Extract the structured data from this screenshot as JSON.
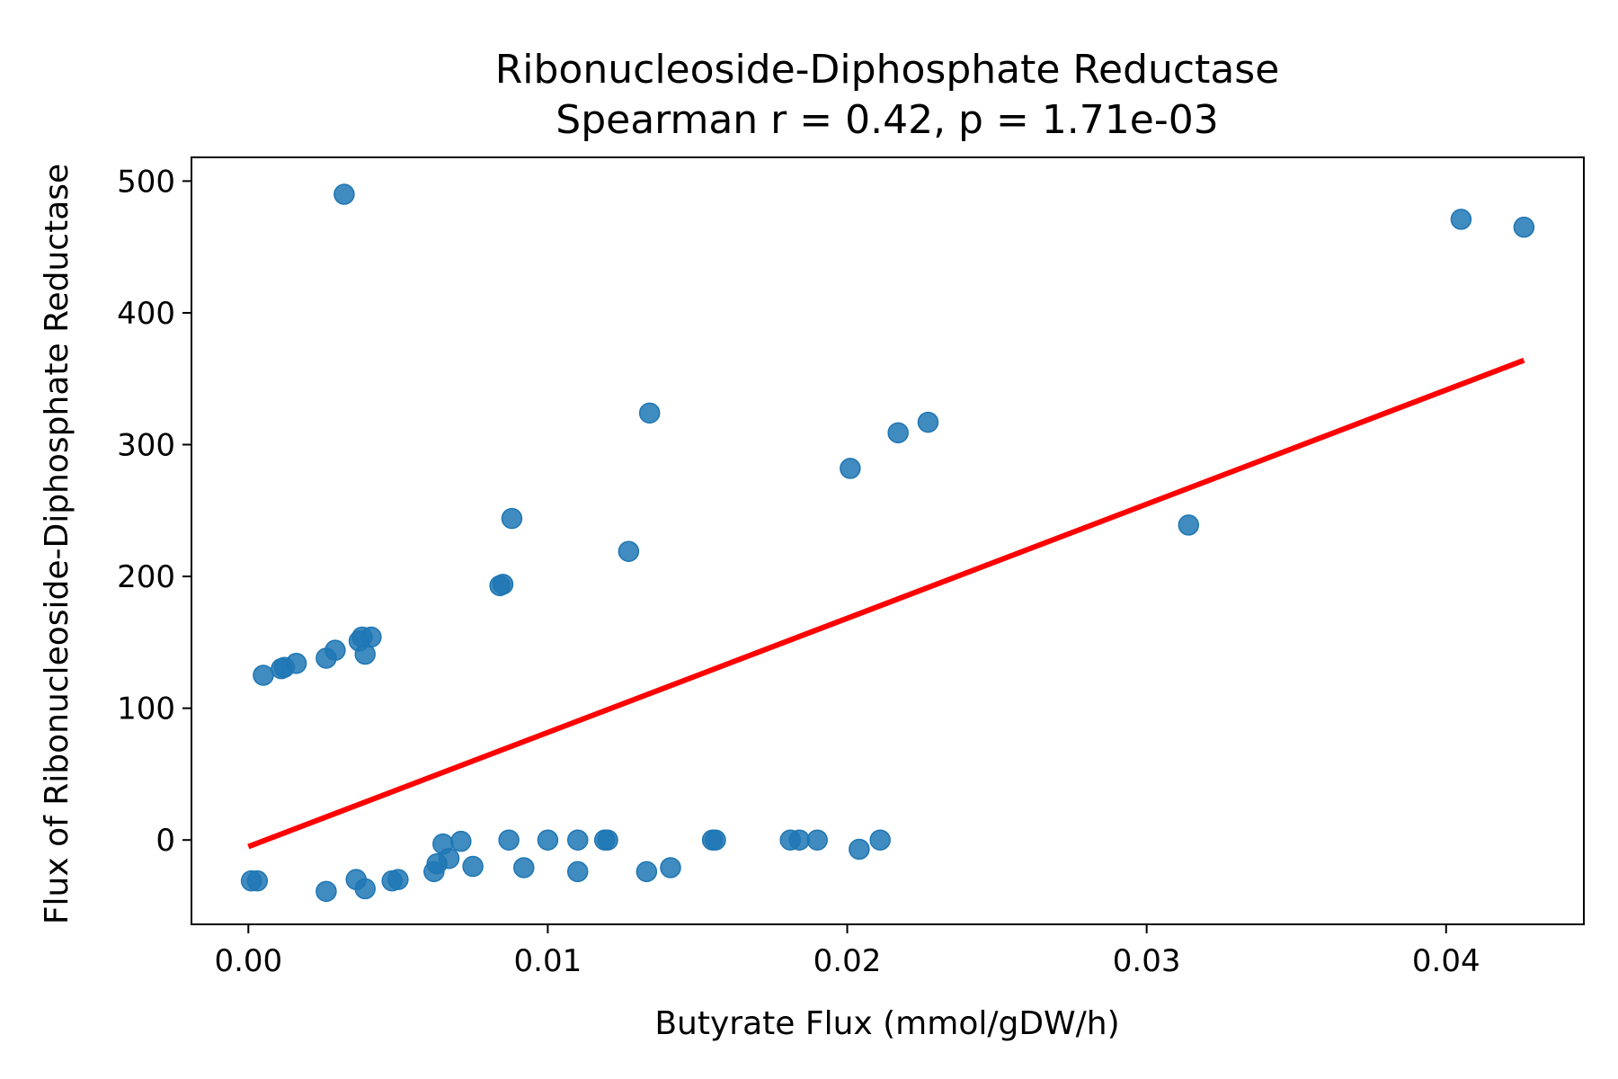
{
  "chart_data": {
    "type": "scatter",
    "title": "Ribonucleoside-Diphosphate Reductase",
    "subtitle": "Spearman r = 0.42, p = 1.71e-03",
    "xlabel": "Butyrate Flux (mmol/gDW/h)",
    "ylabel": "Flux of Ribonucleoside-Diphosphate Reductase",
    "xlim": [
      -0.0019,
      0.0446
    ],
    "ylim": [
      -64,
      518
    ],
    "x_ticks": [
      0.0,
      0.01,
      0.02,
      0.03,
      0.04
    ],
    "x_tick_labels": [
      "0.00",
      "0.01",
      "0.02",
      "0.03",
      "0.04"
    ],
    "y_ticks": [
      0,
      100,
      200,
      300,
      400,
      500
    ],
    "y_tick_labels": [
      "0",
      "100",
      "200",
      "300",
      "400",
      "500"
    ],
    "grid": false,
    "colors": {
      "points": "#1f77b4",
      "fit": "#ff0000"
    },
    "series": [
      {
        "type": "scatter",
        "x": [
          0.0032,
          0.0405,
          0.0426,
          0.0134,
          0.0227,
          0.0217,
          0.0201,
          0.0088,
          0.0314,
          0.0127,
          0.0085,
          0.0084,
          0.0041,
          0.0038,
          0.0037,
          0.0039,
          0.0029,
          0.0026,
          0.0016,
          0.0012,
          0.0011,
          0.0005,
          0.0087,
          0.01,
          0.011,
          0.012,
          0.0119,
          0.0155,
          0.0156,
          0.0181,
          0.0184,
          0.019,
          0.0211,
          0.0204,
          0.0065,
          0.0071,
          0.0067,
          0.0063,
          0.0062,
          0.0075,
          0.0092,
          0.011,
          0.0133,
          0.0141,
          0.0001,
          0.0003,
          0.0026,
          0.0036,
          0.0039,
          0.0048,
          0.005
        ],
        "y": [
          490,
          471,
          465,
          324,
          317,
          309,
          282,
          244,
          239,
          219,
          194,
          193,
          154,
          154,
          151,
          141,
          144,
          138,
          134,
          131,
          130,
          125,
          0,
          0,
          0,
          0,
          0,
          0,
          0,
          0,
          0,
          0,
          0,
          -7,
          -3,
          -1,
          -14,
          -18,
          -24,
          -20,
          -21,
          -24,
          -24,
          -21,
          -31,
          -31,
          -39,
          -30,
          -37,
          -31,
          -30
        ]
      },
      {
        "type": "line",
        "name": "",
        "x": [
          0.0,
          0.0426
        ],
        "y": [
          -5,
          364
        ]
      }
    ]
  }
}
